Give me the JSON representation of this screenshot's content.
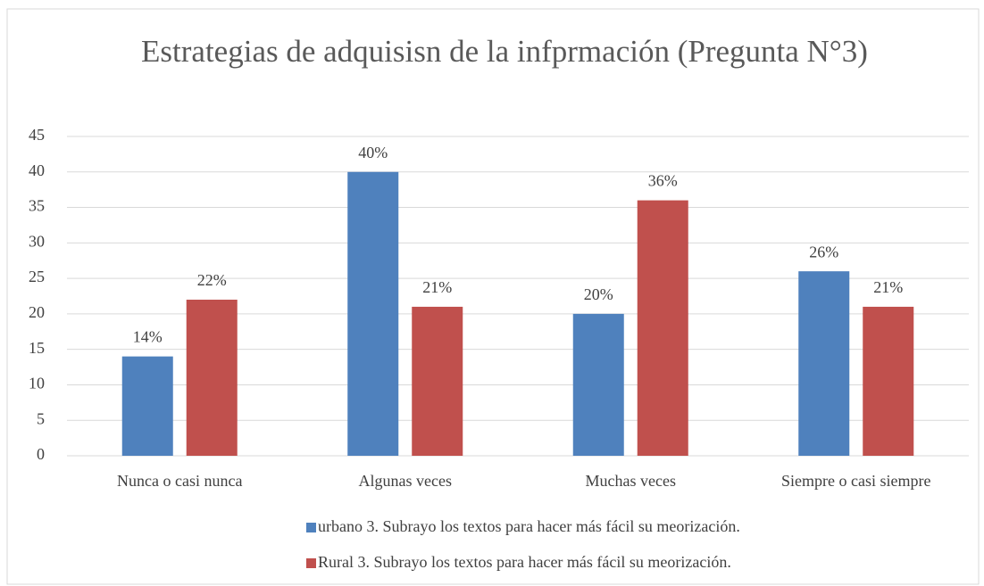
{
  "chart_data": {
    "type": "bar",
    "title": "Estrategias de adquisisn de la infprmación (Pregunta N°3)",
    "categories": [
      "Nunca o casi nunca",
      "Algunas veces",
      "Muchas veces",
      "Siempre o casi siempre"
    ],
    "series": [
      {
        "name": "urbano 3. Subrayo los textos para hacer más fácil su meorización.",
        "color": "#4f81bd",
        "values": [
          14,
          40,
          20,
          26
        ],
        "value_labels": [
          "14%",
          "40%",
          "20%",
          "26%"
        ]
      },
      {
        "name": "Rural 3. Subrayo los textos para hacer más fácil su meorización.",
        "color": "#c0504d",
        "values": [
          22,
          21,
          36,
          21
        ],
        "value_labels": [
          "22%",
          "21%",
          "36%",
          "21%"
        ]
      }
    ],
    "ylim": [
      0,
      45
    ],
    "yticks": [
      0,
      5,
      10,
      15,
      20,
      25,
      30,
      35,
      40,
      45
    ],
    "grid": true,
    "legend": "bottom"
  }
}
